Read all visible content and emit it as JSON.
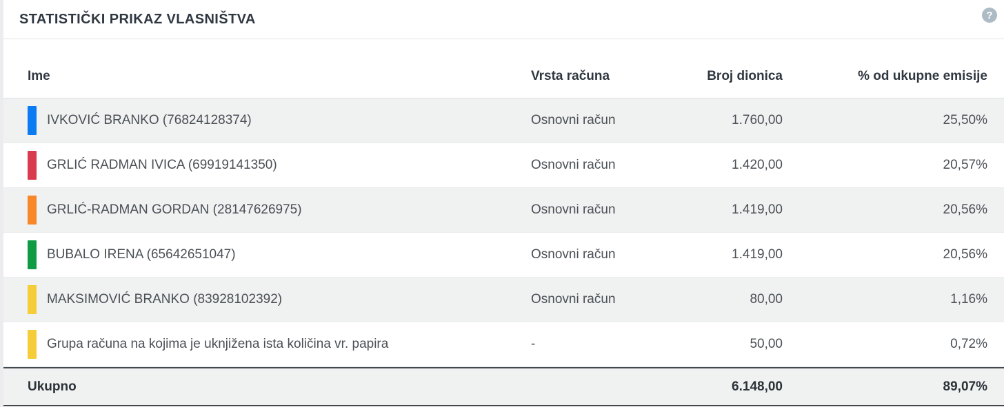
{
  "title": "STATISTIČKI PRIKAZ VLASNIŠTVA",
  "help": {
    "glyph": "?"
  },
  "table": {
    "columns": [
      "Ime",
      "Vrsta računa",
      "Broj dionica",
      "% od ukupne emisije"
    ],
    "rows": [
      {
        "name": "IVKOVIĆ BRANKO (76824128374)",
        "account_type": "Osnovni račun",
        "shares": "1.760,00",
        "percent": "25,50%",
        "color": "#0b7bf3"
      },
      {
        "name": "GRLIĆ RADMAN IVICA (69919141350)",
        "account_type": "Osnovni račun",
        "shares": "1.420,00",
        "percent": "20,57%",
        "color": "#d93a4e"
      },
      {
        "name": "GRLIĆ-RADMAN GORDAN (28147626975)",
        "account_type": "Osnovni račun",
        "shares": "1.419,00",
        "percent": "20,56%",
        "color": "#f8872a"
      },
      {
        "name": "BUBALO IRENA (65642651047)",
        "account_type": "Osnovni račun",
        "shares": "1.419,00",
        "percent": "20,56%",
        "color": "#0f9b44"
      },
      {
        "name": "MAKSIMOVIĆ BRANKO (83928102392)",
        "account_type": "Osnovni račun",
        "shares": "80,00",
        "percent": "1,16%",
        "color": "#f4cd39"
      },
      {
        "name": "Grupa računa na kojima je uknjižena ista količina vr. papira",
        "account_type": "-",
        "shares": "50,00",
        "percent": "0,72%",
        "color": "#f4cd39"
      }
    ],
    "total": {
      "label": "Ukupno",
      "shares": "6.148,00",
      "percent": "89,07%"
    }
  }
}
